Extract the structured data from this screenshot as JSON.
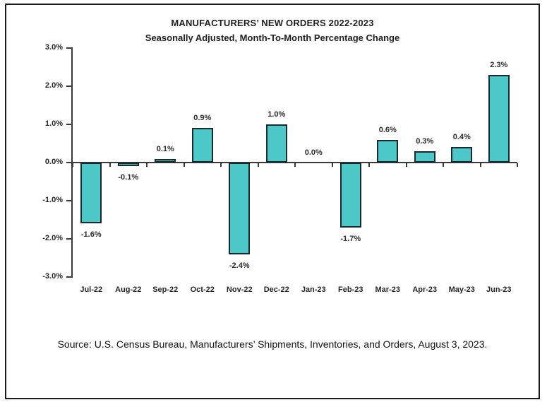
{
  "page": {
    "background_color": "#ffffff",
    "frame_border_color": "#1a1a1a"
  },
  "chart": {
    "title": "MANUFACTURERS’ NEW ORDERS 2022-2023",
    "subtitle": "Seasonally Adjusted,  Month-To-Month Percentage Change",
    "source": "Source: U.S. Census Bureau, Manufacturers’ Shipments, Inventories, and Orders, August 3, 2023."
  },
  "chart_data": {
    "type": "bar",
    "title": "MANUFACTURERS’ NEW ORDERS 2022-2023",
    "subtitle": "Seasonally Adjusted,  Month-To-Month Percentage Change",
    "categories": [
      "Jul-22",
      "Aug-22",
      "Sep-22",
      "Oct-22",
      "Nov-22",
      "Dec-22",
      "Jan-23",
      "Feb-23",
      "Mar-23",
      "Apr-23",
      "May-23",
      "Jun-23"
    ],
    "values": [
      -1.6,
      -0.1,
      0.1,
      0.9,
      -2.4,
      1.0,
      0.0,
      -1.7,
      0.6,
      0.3,
      0.4,
      2.3
    ],
    "data_labels": [
      "-1.6%",
      "-0.1%",
      "0.1%",
      "0.9%",
      "-2.4%",
      "1.0%",
      "0.0%",
      "-1.7%",
      "0.6%",
      "0.3%",
      "0.4%",
      "2.3%"
    ],
    "xlabel": "",
    "ylabel": "",
    "ylim": [
      -3.0,
      3.0
    ],
    "ytick_labels": [
      "3.0%",
      "2.0%",
      "1.0%",
      "0.0%",
      "-1.0%",
      "-2.0%",
      "-3.0%"
    ],
    "grid": false,
    "legend": false,
    "bar_color": "#4dc8c8",
    "bar_border_color": "#1c2a30",
    "axis_color": "#3a3a3a"
  }
}
